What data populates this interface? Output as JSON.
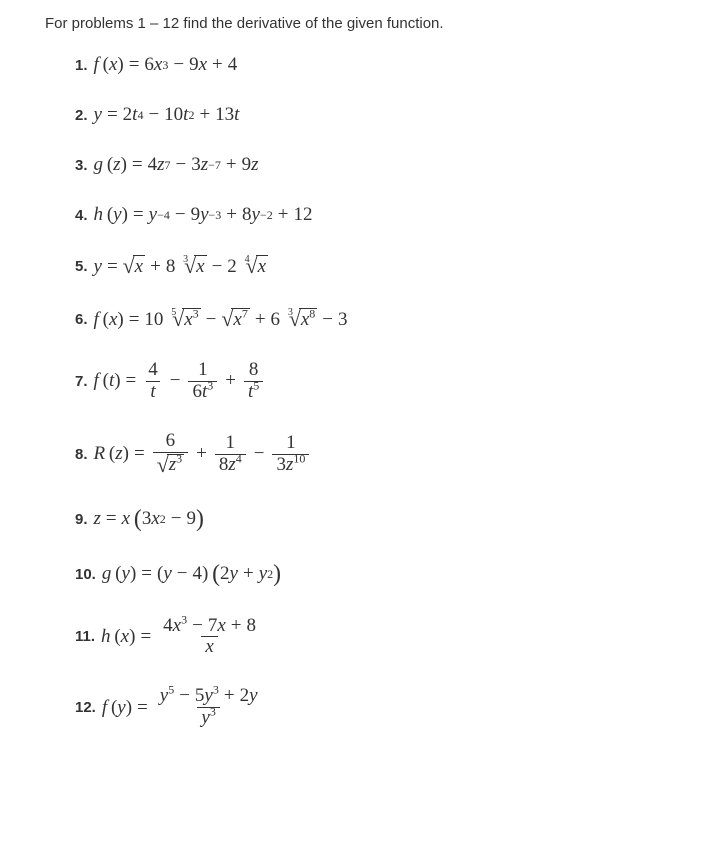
{
  "intro": "For problems 1 – 12 find the derivative of the given function.",
  "text_color": "#333333",
  "background_color": "#ffffff",
  "body_font_family": "Arial, Helvetica, sans-serif",
  "math_font_family": "'Times New Roman', Times, serif",
  "intro_font_size": 15,
  "problem_number_font_size": 15,
  "math_font_size": 19,
  "problems": [
    {
      "n": "1.",
      "expr": "f (x) = 6x³ − 9x + 4",
      "latex": "f(x)=6x^3-9x+4"
    },
    {
      "n": "2.",
      "expr": "y = 2t⁴ − 10t² + 13t",
      "latex": "y=2t^4-10t^2+13t"
    },
    {
      "n": "3.",
      "expr": "g (z) = 4z⁷ − 3z⁻⁷ + 9z",
      "latex": "g(z)=4z^7-3z^{-7}+9z"
    },
    {
      "n": "4.",
      "expr": "h (y) = y⁻⁴ − 9y⁻³ + 8y⁻² + 12",
      "latex": "h(y)=y^{-4}-9y^{-3}+8y^{-2}+12"
    },
    {
      "n": "5.",
      "expr": "y = √x + 8 ∛x − 2 ⁴√x",
      "latex": "y=\\sqrt{x}+8\\sqrt[3]{x}-2\\sqrt[4]{x}"
    },
    {
      "n": "6.",
      "expr": "f (x) = 10 ⁵√(x³) − √(x⁷) + 6 ³√(x⁸) − 3",
      "latex": "f(x)=10\\sqrt[5]{x^3}-\\sqrt{x^7}+6\\sqrt[3]{x^8}-3"
    },
    {
      "n": "7.",
      "expr": "f (t) = 4/t − 1/(6t³) + 8/t⁵",
      "latex": "f(t)=\\frac{4}{t}-\\frac{1}{6t^3}+\\frac{8}{t^5}"
    },
    {
      "n": "8.",
      "expr": "R (z) = 6/√(z³) + 1/(8z⁴) − 1/(3z¹⁰)",
      "latex": "R(z)=\\frac{6}{\\sqrt{z^3}}+\\frac{1}{8z^4}-\\frac{1}{3z^{10}}"
    },
    {
      "n": "9.",
      "expr": "z = x (3x² − 9)",
      "latex": "z=x(3x^2-9)"
    },
    {
      "n": "10.",
      "expr": "g (y) = (y − 4) (2y + y²)",
      "latex": "g(y)=(y-4)(2y+y^2)"
    },
    {
      "n": "11.",
      "expr": "h (x) = (4x³ − 7x + 8)/x",
      "latex": "h(x)=\\frac{4x^3-7x+8}{x}"
    },
    {
      "n": "12.",
      "expr": "f (y) = (y⁵ − 5y³ + 2y)/y³",
      "latex": "f(y)=\\frac{y^5-5y^3+2y}{y^3}"
    }
  ]
}
